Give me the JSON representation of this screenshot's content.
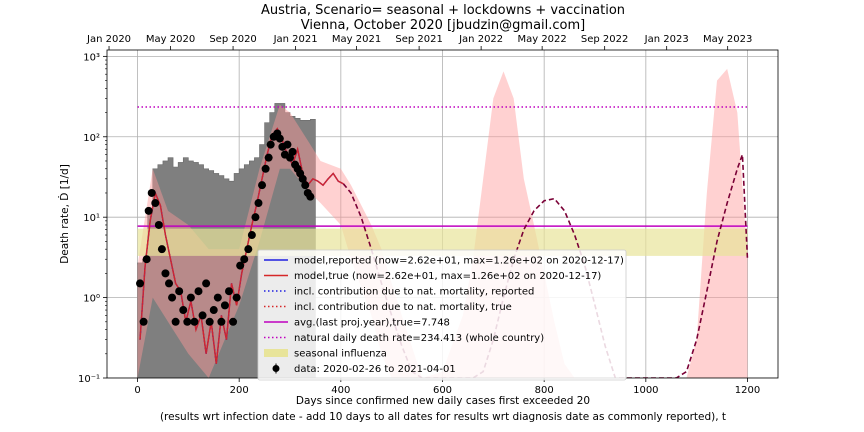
{
  "title_line1": "Austria, Scenario= seasonal + lockdowns + vaccination",
  "title_line2": "Vienna, October 2020 [jbudzin@gmail.com]",
  "chart_data": {
    "type": "line",
    "title": "Austria, Scenario= seasonal + lockdowns + vaccination / Vienna, October 2020 [jbudzin@gmail.com]",
    "xlabel_line1": "Days since confirmed new daily cases first exceeded 20",
    "xlabel_line2": "(results wrt infection date - add 10 days to all dates for results wrt diagnosis date as commonly reported), t",
    "ylabel": "Death rate, Ḋ [1/d]",
    "xlim": [
      -60,
      1260
    ],
    "ylim": [
      0.1,
      1200
    ],
    "yscale": "log",
    "grid": true,
    "legend_position": "lower center",
    "x_ticks": [
      0,
      200,
      400,
      600,
      800,
      1000,
      1200
    ],
    "y_ticks": [
      {
        "value": 0.1,
        "label": "10⁻¹"
      },
      {
        "value": 1,
        "label": "10⁰"
      },
      {
        "value": 10,
        "label": "10¹"
      },
      {
        "value": 100,
        "label": "10²"
      },
      {
        "value": 1000,
        "label": "10³"
      }
    ],
    "top_axis": {
      "labels": [
        "Jan 2020",
        "May 2020",
        "Sep 2020",
        "Jan 2021",
        "May 2021",
        "Sep 2021",
        "Jan 2022",
        "May 2022",
        "Sep 2022",
        "Jan 2023",
        "May 2023"
      ],
      "days": [
        -56,
        65,
        188,
        311,
        431,
        554,
        676,
        796,
        919,
        1041,
        1161
      ]
    },
    "legend": [
      {
        "label": "model,reported (now=2.62e+01, max=1.26e+02 on 2020-12-17)",
        "color": "#1f1fe0",
        "style": "solid"
      },
      {
        "label": "model,true (now=2.62e+01, max=1.26e+02 on 2020-12-17)",
        "color": "#d62728",
        "style": "solid"
      },
      {
        "label": "incl. contribution due to nat. mortality, reported",
        "color": "#1f1fe0",
        "style": "dotted"
      },
      {
        "label": "incl. contribution due to nat. mortality, true",
        "color": "#d62728",
        "style": "dotted"
      },
      {
        "label": "avg.(last proj.year),true=7.748",
        "color": "#bf00bf",
        "style": "solid"
      },
      {
        "label": "natural daily death rate=234.413 (whole country)",
        "color": "#bf00bf",
        "style": "dotted"
      },
      {
        "label": "seasonal influenza",
        "color": "#e8e49a",
        "style": "patch"
      },
      {
        "label": "data: 2020-02-26 to 2021-04-01",
        "color": "#000000",
        "style": "marker"
      }
    ],
    "series": [
      {
        "name": "avg.(last proj.year),true=7.748",
        "x": [
          0,
          1200
        ],
        "y": [
          7.748,
          7.748
        ]
      },
      {
        "name": "natural daily death rate=234.413 (whole country)",
        "x": [
          0,
          1200
        ],
        "y": [
          234.413,
          234.413
        ]
      },
      {
        "name": "seasonal influenza",
        "x": [
          0,
          1200
        ],
        "y_low": [
          3.3,
          3.3
        ],
        "y_high": [
          7.2,
          7.2
        ]
      },
      {
        "name": "model,true (now=2.62e+01, max=1.26e+02 on 2020-12-17)",
        "x": [
          5,
          15,
          25,
          35,
          45,
          55,
          65,
          75,
          85,
          95,
          105,
          115,
          125,
          135,
          145,
          155,
          165,
          175,
          185,
          195,
          205,
          215,
          225,
          235,
          245,
          255,
          265,
          275,
          285,
          295,
          305,
          315,
          325,
          335,
          345,
          355,
          365,
          375,
          385,
          395,
          405
        ],
        "y": [
          0.3,
          2.5,
          9,
          20,
          14,
          6,
          3,
          1.5,
          1.2,
          0.5,
          0.9,
          0.4,
          0.6,
          0.2,
          0.5,
          0.15,
          0.6,
          0.3,
          1.5,
          0.8,
          2,
          4,
          8,
          15,
          30,
          60,
          105,
          126,
          90,
          60,
          45,
          70,
          35,
          25,
          30,
          28,
          25,
          30,
          35,
          28,
          26
        ]
      },
      {
        "name": "model projection",
        "x": [
          405,
          420,
          440,
          460,
          480,
          500,
          520,
          540,
          560,
          580,
          600,
          620,
          640,
          660,
          680,
          700,
          720,
          740,
          760,
          780,
          800,
          820,
          840,
          860,
          880,
          900,
          920,
          940,
          960,
          980,
          1000,
          1020,
          1040,
          1060,
          1080,
          1100,
          1120,
          1140,
          1160,
          1180,
          1190,
          1200
        ],
        "y": [
          26,
          20,
          10,
          4,
          1.5,
          0.6,
          0.25,
          0.12,
          0.1,
          0.1,
          0.1,
          0.1,
          0.1,
          0.1,
          0.12,
          0.3,
          1,
          3,
          7,
          12,
          16,
          17,
          12,
          6,
          2.5,
          0.8,
          0.25,
          0.1,
          0.1,
          0.1,
          0.1,
          0.1,
          0.1,
          0.1,
          0.12,
          0.3,
          1.2,
          5,
          15,
          40,
          60,
          3
        ]
      },
      {
        "name": "data: 2020-02-26 to 2021-04-01",
        "x": [
          5,
          12,
          18,
          22,
          28,
          35,
          42,
          48,
          55,
          62,
          68,
          75,
          82,
          90,
          98,
          105,
          112,
          120,
          128,
          135,
          142,
          150,
          158,
          165,
          172,
          180,
          188,
          195,
          202,
          210,
          218,
          225,
          232,
          238,
          245,
          252,
          258,
          262,
          268,
          275,
          280,
          285,
          290,
          295,
          300,
          305,
          310,
          315,
          320,
          325,
          330,
          335,
          340
        ],
        "y": [
          1.5,
          0.5,
          3,
          12,
          20,
          15,
          8,
          4,
          2,
          1.5,
          1,
          0.5,
          1.2,
          0.7,
          0.5,
          1,
          0.5,
          1.2,
          0.6,
          1.5,
          0.5,
          0.7,
          1,
          0.5,
          0.8,
          1.2,
          0.5,
          1,
          2.5,
          3,
          4,
          6,
          10,
          15,
          25,
          40,
          55,
          80,
          100,
          110,
          95,
          75,
          60,
          80,
          55,
          65,
          45,
          40,
          35,
          30,
          25,
          20,
          18
        ]
      },
      {
        "name": "confidence band",
        "x": [
          0,
          30,
          60,
          100,
          140,
          200,
          240,
          280,
          300,
          340,
          360,
          400,
          420,
          460,
          480,
          500,
          520,
          560,
          600,
          640,
          660,
          680,
          700,
          720,
          740,
          760,
          780,
          800,
          820,
          840,
          860,
          880,
          920,
          960,
          1000,
          1040,
          1060,
          1080,
          1100,
          1120,
          1140,
          1160,
          1180,
          1200
        ],
        "y_low": [
          0.1,
          1,
          0.5,
          0.2,
          0.1,
          0.8,
          5,
          40,
          40,
          20,
          15,
          8,
          3,
          0.6,
          0.2,
          0.1,
          0.1,
          0.1,
          0.1,
          0.1,
          0.1,
          0.1,
          0.1,
          0.1,
          0.1,
          0.1,
          0.1,
          0.1,
          0.1,
          0.1,
          0.1,
          0.1,
          0.1,
          0.1,
          0.1,
          0.1,
          0.1,
          0.1,
          0.1,
          0.1,
          0.1,
          0.1,
          0.1,
          0.1
        ],
        "y_high": [
          2.5,
          40,
          12,
          8,
          4,
          4,
          40,
          250,
          200,
          80,
          50,
          40,
          25,
          8,
          4,
          1.5,
          0.6,
          0.1,
          0.12,
          0.6,
          3,
          30,
          300,
          650,
          300,
          30,
          8,
          2,
          0.5,
          0.15,
          0.1,
          0.1,
          0.1,
          0.1,
          0.1,
          0.1,
          0.1,
          0.1,
          0.3,
          20,
          500,
          700,
          200,
          3
        ]
      },
      {
        "name": "data histogram",
        "x": [
          0,
          10,
          20,
          30,
          40,
          50,
          60,
          70,
          80,
          90,
          100,
          110,
          120,
          130,
          140,
          150,
          160,
          170,
          180,
          190,
          200,
          210,
          220,
          230,
          240,
          250,
          260,
          270,
          280,
          290,
          300,
          310,
          320,
          330,
          340
        ],
        "y": [
          2.7,
          3,
          12,
          40,
          45,
          50,
          55,
          42,
          48,
          55,
          50,
          48,
          45,
          40,
          38,
          35,
          33,
          30,
          28,
          35,
          40,
          45,
          50,
          55,
          80,
          150,
          200,
          260,
          260,
          200,
          180,
          170,
          160,
          160,
          165
        ]
      }
    ]
  }
}
